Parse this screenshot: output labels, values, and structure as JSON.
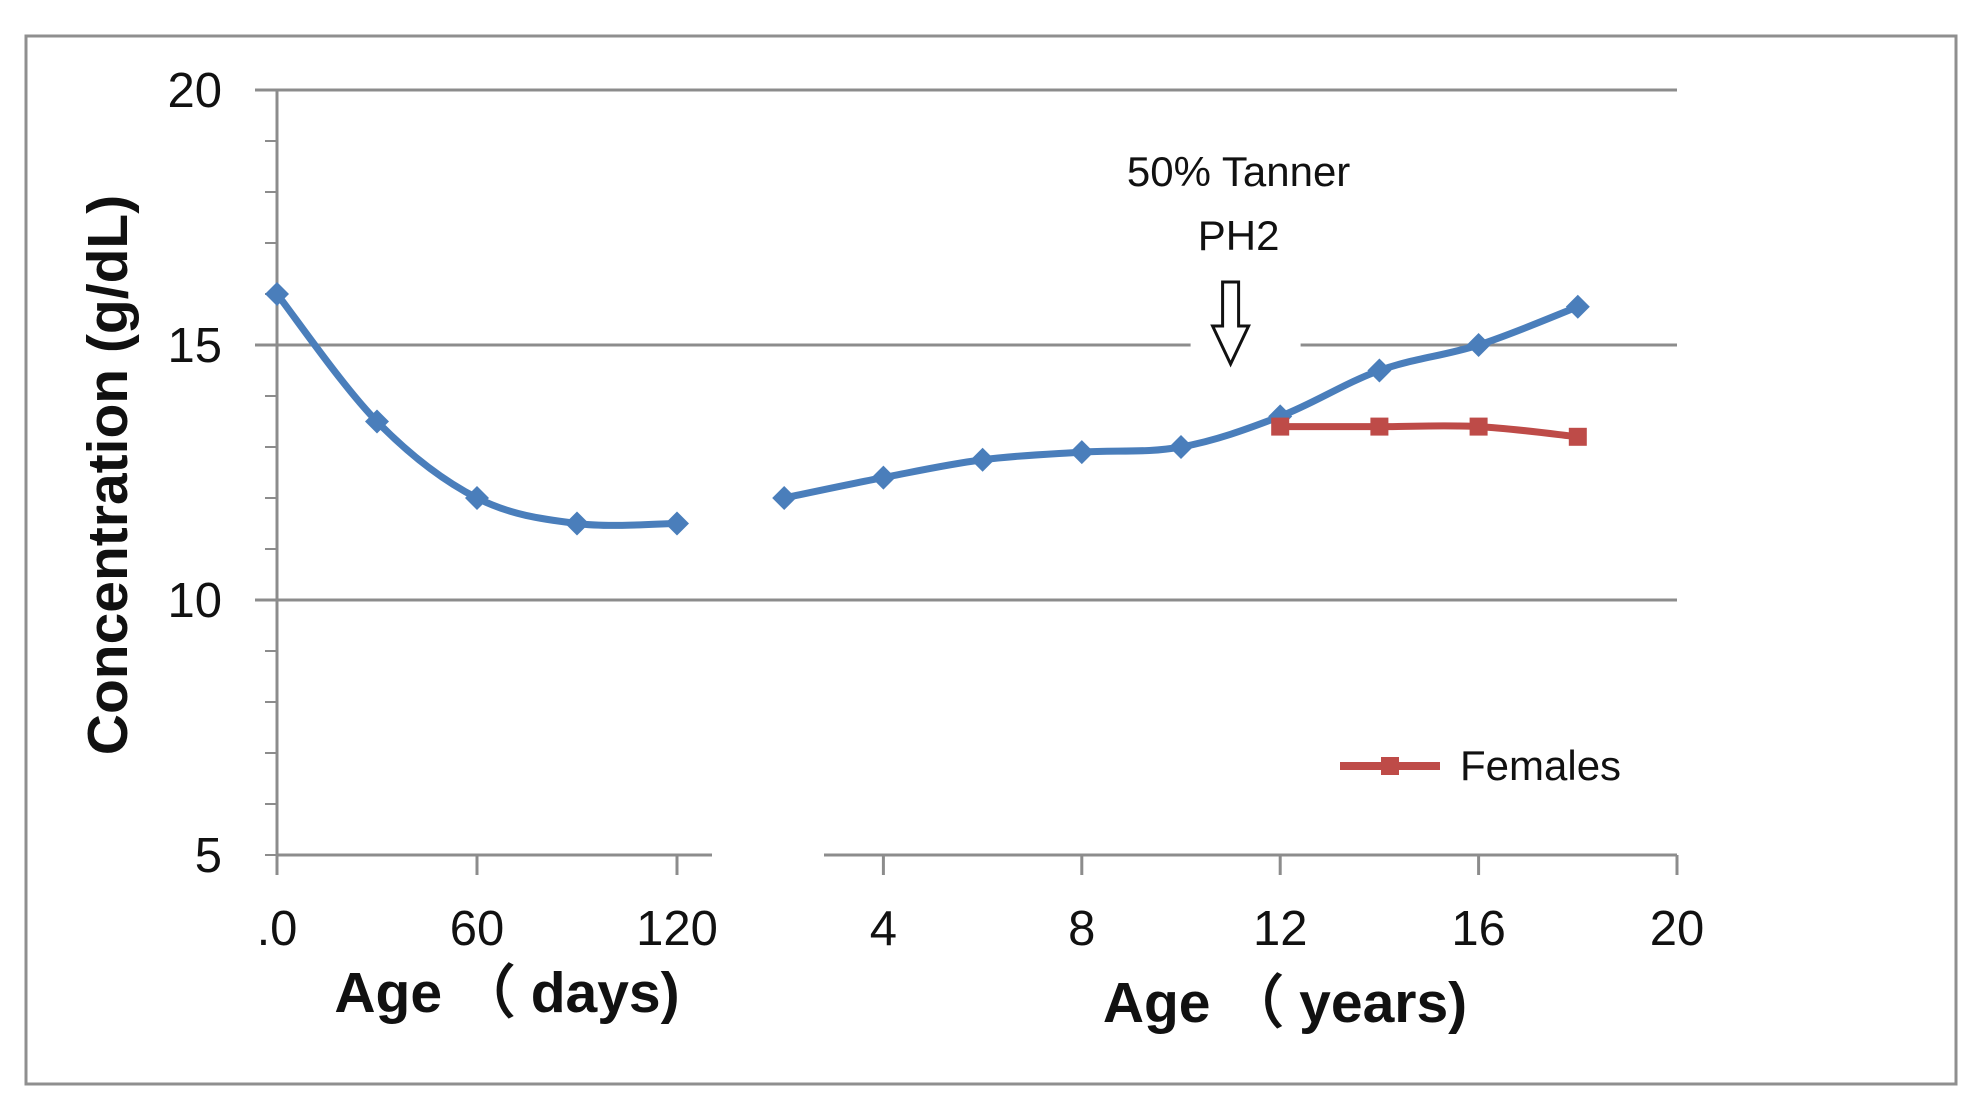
{
  "chart_data": {
    "type": "line",
    "panels": [
      {
        "id": "days",
        "xlabel": "Age （ days)",
        "x_ticks": [
          0,
          60,
          120
        ],
        "x_tick_labels": [
          ".0",
          "60",
          "120"
        ],
        "xlim": [
          0,
          120
        ],
        "series": [
          {
            "color": "#4a7ebb",
            "marker": "diamond",
            "x": [
              0,
              30,
              60,
              90,
              120
            ],
            "y": [
              16.0,
              13.5,
              12.0,
              11.5,
              11.5
            ]
          }
        ]
      },
      {
        "id": "years",
        "xlabel": "Age （ years)",
        "x_ticks": [
          4,
          8,
          12,
          16,
          20
        ],
        "x_tick_labels": [
          "4",
          "8",
          "12",
          "16",
          "20"
        ],
        "xlim": [
          0,
          20
        ],
        "series": [
          {
            "color": "#4a7ebb",
            "marker": "diamond",
            "x": [
              2,
              4,
              6,
              8,
              10,
              12,
              14,
              16,
              18
            ],
            "y": [
              12.0,
              12.4,
              12.75,
              12.9,
              13.0,
              13.6,
              14.5,
              15.0,
              15.75
            ]
          },
          {
            "name": "Females",
            "color": "#be4b48",
            "marker": "square",
            "x": [
              12,
              14,
              16,
              18
            ],
            "y": [
              13.4,
              13.4,
              13.4,
              13.2
            ]
          }
        ]
      }
    ],
    "ylabel": "Concentration (g/dL)",
    "ylim": [
      5,
      20
    ],
    "y_ticks": [
      5,
      10,
      15,
      20
    ],
    "y_tick_labels": [
      "5",
      "10",
      "15",
      "20"
    ],
    "grid": true,
    "annotation": {
      "lines": [
        "50% Tanner",
        "PH2"
      ],
      "x": 11,
      "panel": "years",
      "symbol": "down-arrow"
    },
    "legend": {
      "position": "bottom-right",
      "entries": [
        "Females"
      ]
    }
  }
}
